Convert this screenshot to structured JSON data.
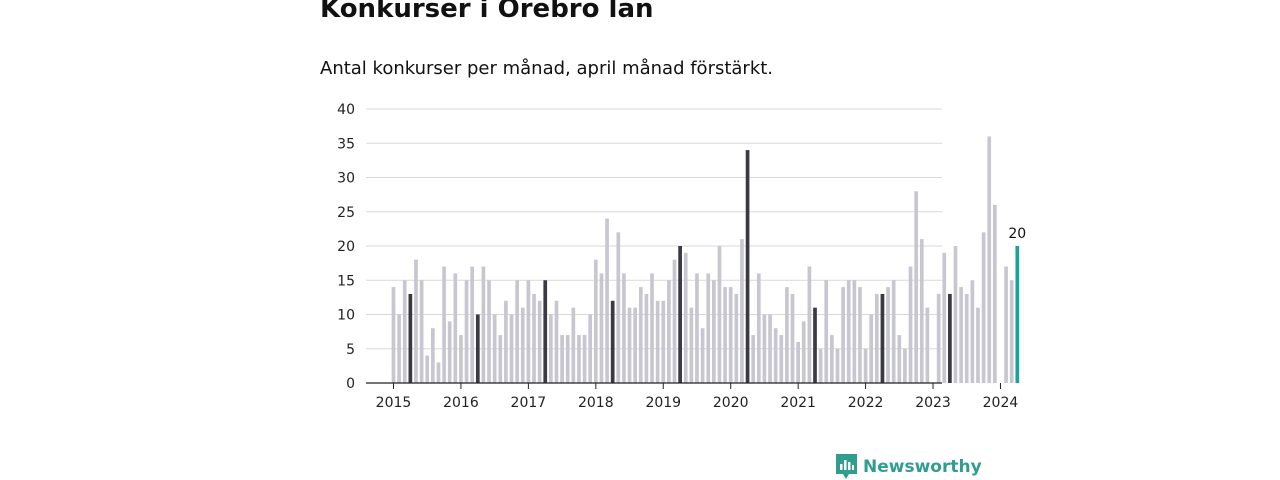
{
  "title": "Konkurser i Örebro län",
  "subtitle": "Antal konkurser per månad, april månad förstärkt.",
  "brand": {
    "name": "Newsworthy",
    "icon": "newsworthy-logo-icon",
    "color": "#2f9e8f"
  },
  "colors": {
    "bar": "#c8c7d1",
    "highlight": "#3a3a44",
    "latest": "#1aa39a",
    "grid": "#d9d9d9",
    "axis": "#222222"
  },
  "chart_data": {
    "type": "bar",
    "title": "Konkurser i Örebro län",
    "subtitle": "Antal konkurser per månad, april månad förstärkt.",
    "xlabel": "",
    "ylabel": "",
    "ylim": [
      0,
      40
    ],
    "yticks": [
      0,
      5,
      10,
      15,
      20,
      25,
      30,
      35,
      40
    ],
    "xticks": [
      "2015",
      "2016",
      "2017",
      "2018",
      "2019",
      "2020",
      "2021",
      "2022",
      "2023",
      "2024"
    ],
    "grid": true,
    "start": "2015-01",
    "highlight_month": "April",
    "latest_label": "20",
    "values": [
      14,
      10,
      15,
      13,
      18,
      15,
      4,
      8,
      3,
      17,
      9,
      16,
      7,
      15,
      17,
      10,
      17,
      15,
      10,
      7,
      12,
      10,
      15,
      11,
      15,
      13,
      12,
      15,
      10,
      12,
      7,
      7,
      11,
      7,
      7,
      10,
      18,
      16,
      24,
      12,
      22,
      16,
      11,
      11,
      14,
      13,
      16,
      12,
      12,
      15,
      18,
      20,
      19,
      11,
      16,
      8,
      16,
      15,
      20,
      14,
      14,
      13,
      21,
      34,
      7,
      16,
      10,
      10,
      8,
      7,
      14,
      13,
      6,
      9,
      17,
      11,
      5,
      15,
      7,
      5,
      14,
      15,
      15,
      14,
      5,
      10,
      13,
      13,
      14,
      15,
      7,
      5,
      17,
      28,
      21,
      11,
      0,
      13,
      19,
      13,
      20,
      14,
      13,
      15,
      11,
      22,
      36,
      26,
      0,
      17,
      15,
      20
    ]
  }
}
